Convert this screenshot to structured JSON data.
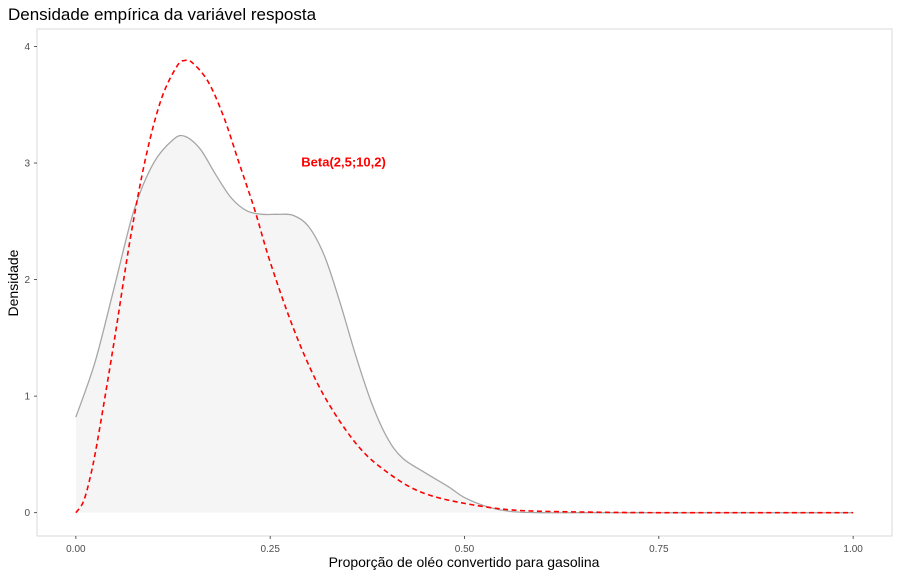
{
  "chart_data": {
    "type": "area",
    "title": "Densidade empírica da variável resposta",
    "xlabel": "Proporção de oléo convertido para gasolina",
    "ylabel": "Densidade",
    "xlim": [
      -0.05,
      1.05
    ],
    "ylim": [
      -0.2,
      4.15
    ],
    "x_ticks": [
      0,
      0.25,
      0.5,
      0.75,
      1
    ],
    "x_tick_labels": [
      "0.00",
      "0.25",
      "0.50",
      "0.75",
      "1.00"
    ],
    "y_ticks": [
      0,
      1,
      2,
      3,
      4
    ],
    "y_tick_labels": [
      "0",
      "1",
      "2",
      "3",
      "4"
    ],
    "grid": false,
    "series": [
      {
        "kind": "empirical-density",
        "color": "#a6a6a6",
        "fill": "#f5f5f5",
        "dash": false,
        "x": [
          0,
          0.025,
          0.05,
          0.075,
          0.1,
          0.125,
          0.14,
          0.16,
          0.18,
          0.2,
          0.22,
          0.24,
          0.26,
          0.28,
          0.3,
          0.32,
          0.34,
          0.36,
          0.38,
          0.4,
          0.42,
          0.45,
          0.48,
          0.5,
          0.53,
          0.56,
          0.6,
          0.65,
          0.7,
          0.8,
          1.0
        ],
        "y": [
          0.82,
          1.3,
          1.95,
          2.6,
          3.0,
          3.2,
          3.23,
          3.12,
          2.9,
          2.7,
          2.59,
          2.56,
          2.56,
          2.55,
          2.45,
          2.2,
          1.8,
          1.35,
          0.95,
          0.65,
          0.47,
          0.34,
          0.22,
          0.13,
          0.05,
          0.01,
          0.0,
          0.0,
          0.0,
          0.0,
          0.0
        ]
      },
      {
        "kind": "beta-density",
        "color": "#ff0000",
        "dash": true,
        "x": [
          0,
          0.01,
          0.02,
          0.03,
          0.05,
          0.07,
          0.09,
          0.11,
          0.13,
          0.14,
          0.15,
          0.17,
          0.19,
          0.21,
          0.23,
          0.25,
          0.28,
          0.31,
          0.34,
          0.37,
          0.4,
          0.43,
          0.46,
          0.5,
          0.55,
          0.6,
          0.7,
          0.8,
          0.9,
          1.0
        ],
        "y": [
          0.0,
          0.1,
          0.35,
          0.7,
          1.5,
          2.35,
          3.05,
          3.55,
          3.83,
          3.88,
          3.86,
          3.7,
          3.4,
          3.0,
          2.6,
          2.15,
          1.58,
          1.12,
          0.78,
          0.52,
          0.35,
          0.22,
          0.14,
          0.08,
          0.03,
          0.012,
          0.002,
          0.0,
          0.0,
          0.0
        ]
      }
    ],
    "annotations": [
      {
        "text": "Beta(2,5;10,2)",
        "x": 0.29,
        "y": 2.97,
        "color": "#ff0000"
      }
    ]
  }
}
